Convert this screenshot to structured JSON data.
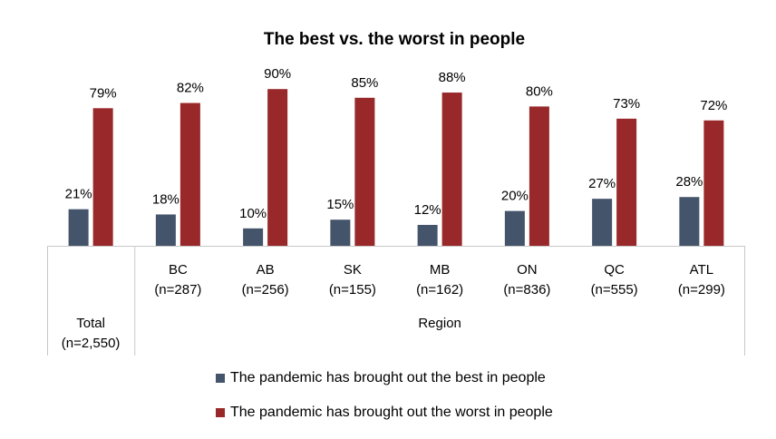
{
  "chart_data": {
    "type": "bar",
    "title": "The best vs. the worst in people",
    "categories": [
      {
        "name": "Total",
        "n": "(n=2,550)"
      },
      {
        "name": "BC",
        "n": "(n=287)"
      },
      {
        "name": "AB",
        "n": "(n=256)"
      },
      {
        "name": "SK",
        "n": "(n=155)"
      },
      {
        "name": "MB",
        "n": "(n=162)"
      },
      {
        "name": "ON",
        "n": "(n=836)"
      },
      {
        "name": "QC",
        "n": "(n=555)"
      },
      {
        "name": "ATL",
        "n": "(n=299)"
      }
    ],
    "group_label": "Region",
    "series": [
      {
        "name": "The pandemic has brought out the best in people",
        "color": "#44546A",
        "values": [
          21,
          18,
          10,
          15,
          12,
          20,
          27,
          28
        ],
        "labels": [
          "21%",
          "18%",
          "10%",
          "15%",
          "12%",
          "20%",
          "27%",
          "28%"
        ]
      },
      {
        "name": "The pandemic has brought out the worst in people",
        "color": "#98282A",
        "values": [
          79,
          82,
          90,
          85,
          88,
          80,
          73,
          72
        ],
        "labels": [
          "79%",
          "82%",
          "90%",
          "85%",
          "88%",
          "80%",
          "73%",
          "72%"
        ]
      }
    ],
    "ylim": [
      0,
      100
    ],
    "legend_position": "bottom",
    "grid": false
  }
}
